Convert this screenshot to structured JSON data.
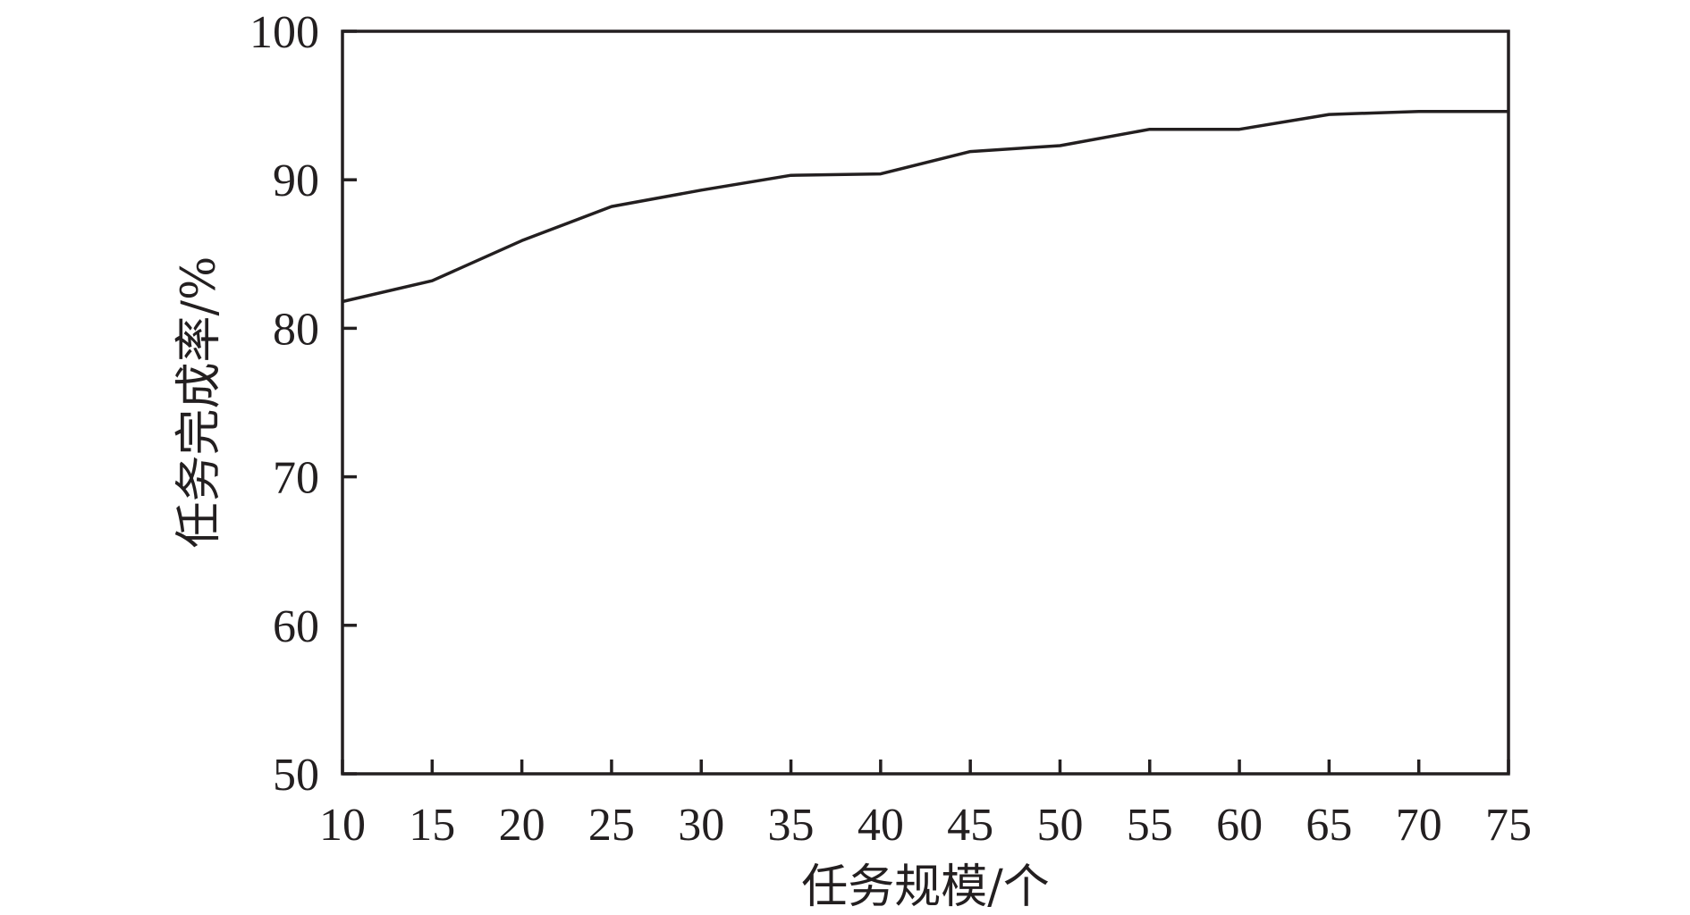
{
  "chart_data": {
    "type": "line",
    "title": "",
    "xlabel": "任务规模/个",
    "ylabel": "任务完成率/%",
    "xlim": [
      10,
      75
    ],
    "ylim": [
      50,
      100
    ],
    "x_ticks": [
      10,
      15,
      20,
      25,
      30,
      35,
      40,
      45,
      50,
      55,
      60,
      65,
      70,
      75
    ],
    "y_ticks": [
      50,
      60,
      70,
      80,
      90,
      100
    ],
    "grid": false,
    "legend": "none",
    "series": [
      {
        "x": [
          10,
          15,
          20,
          25,
          30,
          35,
          40,
          45,
          50,
          55,
          60,
          65,
          70,
          75
        ],
        "y": [
          81.8,
          83.2,
          85.9,
          88.2,
          89.3,
          90.3,
          90.4,
          91.9,
          92.3,
          93.4,
          93.4,
          94.4,
          94.6,
          94.6
        ],
        "color": "#231f20"
      }
    ]
  }
}
